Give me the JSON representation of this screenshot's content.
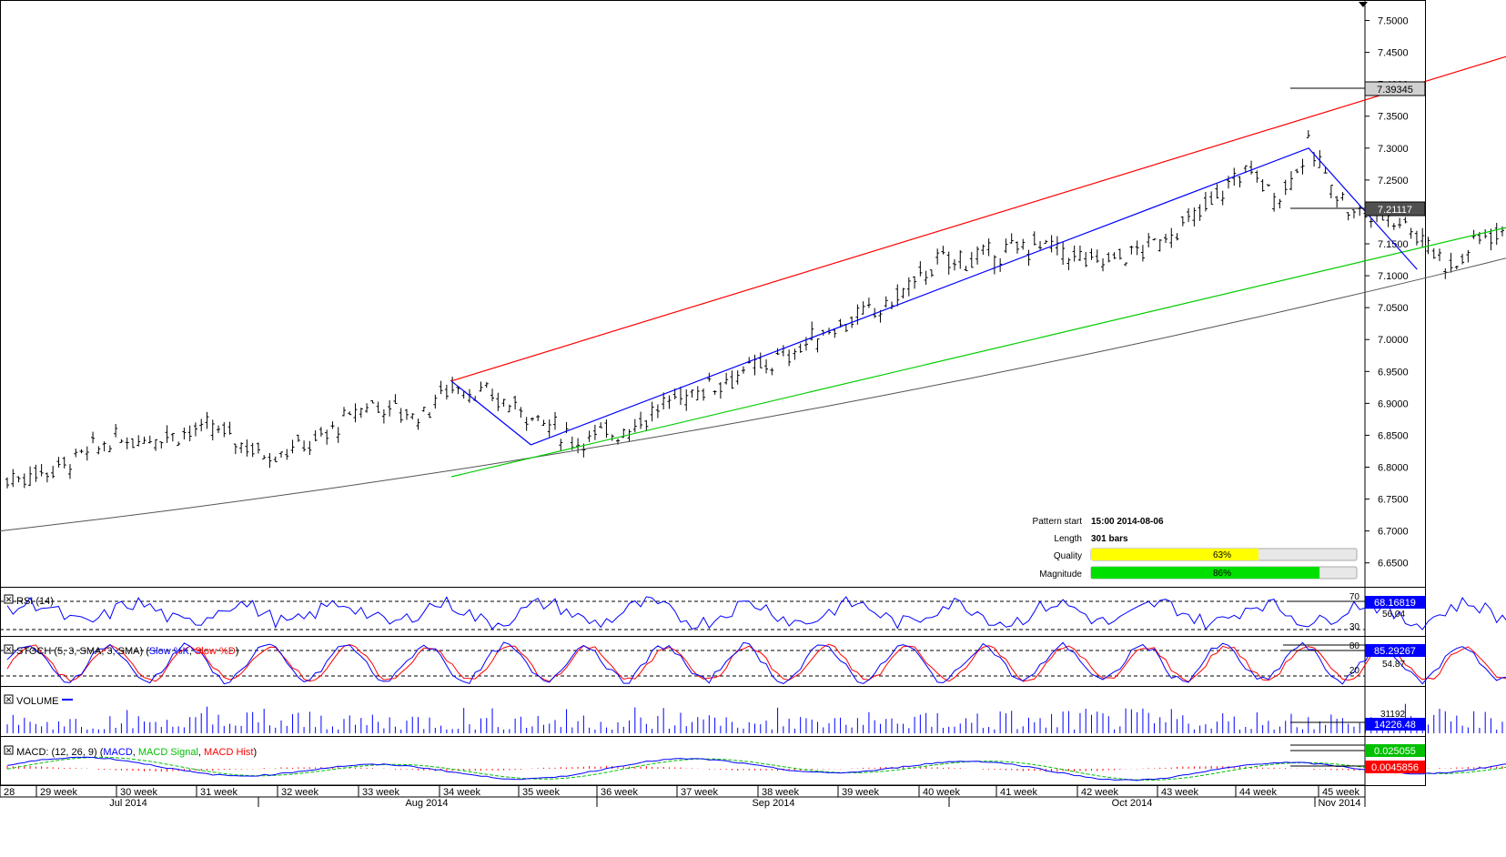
{
  "chart_data": {
    "type": "ohlc",
    "instrument_price_last": "7.39345",
    "price_axis": {
      "ylim": [
        6.6125,
        7.525
      ],
      "ticks": [
        "7.5000",
        "7.4500",
        "7.4000",
        "7.3500",
        "7.3000",
        "7.2500",
        "7.2000",
        "7.1500",
        "7.1000",
        "7.0500",
        "7.0000",
        "6.9500",
        "6.9000",
        "6.8500",
        "6.8000",
        "6.7500",
        "6.7000",
        "6.6500"
      ],
      "last_price_label": "7.39345",
      "ma_label": "7.21117"
    },
    "price_series_approx": {
      "x_weeks": [
        28.0,
        28.5,
        29.0,
        29.5,
        30.0,
        30.5,
        31.0,
        31.5,
        32.0,
        32.3,
        33.0,
        33.5,
        34.0,
        34.5,
        35.0,
        35.5,
        36.0,
        36.5,
        37.0,
        37.5,
        38.0,
        38.5,
        39.0,
        39.5,
        40.0,
        40.3,
        40.6,
        41.0,
        41.5,
        42.0,
        42.3,
        42.6,
        43.0,
        43.5,
        44.0,
        44.3,
        44.5
      ],
      "close": [
        6.78,
        6.8,
        6.84,
        6.85,
        6.86,
        6.82,
        6.84,
        6.9,
        6.88,
        6.93,
        6.89,
        6.84,
        6.86,
        6.91,
        6.94,
        6.97,
        7.02,
        7.05,
        7.12,
        7.13,
        7.15,
        7.12,
        7.14,
        7.19,
        7.27,
        7.22,
        7.3,
        7.2,
        7.19,
        7.11,
        7.17,
        7.16,
        7.19,
        7.27,
        7.23,
        7.33,
        7.39
      ]
    },
    "moving_average": {
      "label": "",
      "start": 6.7,
      "end": 7.21117
    },
    "trend_lines": {
      "resistance": {
        "color": "#ff0000",
        "from_price": 6.935,
        "to_price": 7.495
      },
      "support": {
        "color": "#00cc00",
        "from_price": 6.785,
        "to_price": 7.215
      },
      "wave": {
        "color": "#0000ff",
        "prices": [
          6.935,
          6.835,
          7.3,
          7.11
        ]
      }
    },
    "pattern_info": {
      "pattern_start_label": "Pattern start",
      "pattern_start_value": "15:00 2014-08-06",
      "length_label": "Length",
      "length_value": "301 bars",
      "quality_label": "Quality",
      "quality_value": "63%",
      "quality_fraction": 0.63,
      "magnitude_label": "Magnitude",
      "magnitude_value": "86%",
      "magnitude_fraction": 0.86
    },
    "rsi": {
      "title": "RSI (14)",
      "level_high": "70",
      "level_low": "30",
      "mid_label": "56.04",
      "value": "68.16819"
    },
    "stoch": {
      "title_prefix": "STOCH (5, 3, SMA, 3, SMA)",
      "slow_k": "Slow %K",
      "slow_d": "Slow %D",
      "level_high": "80",
      "level_low": "20",
      "mid_label": "54.87",
      "value": "85.29267"
    },
    "volume": {
      "title": "VOLUME",
      "max_label": "31192",
      "value": "14226.48"
    },
    "macd": {
      "title_prefix": "MACD: (12, 26, 9)",
      "macd_name": "MACD",
      "signal_name": "MACD Signal",
      "hist_name": "MACD Hist",
      "value_macd": "0.025055",
      "value_hist": "0.0045856"
    },
    "x_axis": {
      "week_labels": [
        "28",
        "29 week",
        "30 week",
        "31 week",
        "32 week",
        "33 week",
        "34 week",
        "35 week",
        "36 week",
        "37 week",
        "38 week",
        "39 week",
        "40 week",
        "41 week",
        "42 week",
        "43 week",
        "44 week",
        "45 week"
      ],
      "month_labels": [
        "Jul 2014",
        "Aug 2014",
        "Sep 2014",
        "Oct 2014",
        "Nov 2014"
      ]
    },
    "colors": {
      "bars": "#000000",
      "ma": "#555555",
      "rsi": "#0000ff",
      "stoch_k": "#0000ff",
      "stoch_d": "#ff0000",
      "volume": "#0000ff",
      "macd": "#0000ff",
      "signal": "#00c000",
      "hist": "#ff0000",
      "quality_bar": "#ffff00",
      "magnitude_bar": "#00e000"
    }
  }
}
